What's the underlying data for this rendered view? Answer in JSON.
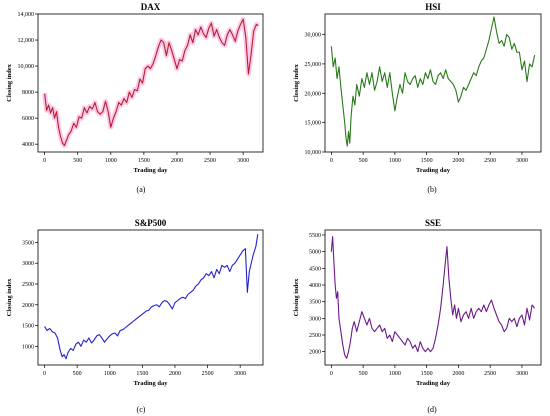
{
  "chart_data": [
    {
      "type": "line",
      "title": "DAX",
      "xlabel": "Trading day",
      "ylabel": "Closing index",
      "caption": "(a)",
      "xlim": [
        -100,
        3300
      ],
      "ylim": [
        3400,
        14000
      ],
      "x_ticks": [
        0,
        500,
        1000,
        1500,
        2000,
        2500,
        3000
      ],
      "x_tick_labels": [
        "0",
        "500",
        "1000",
        "1500",
        "2000",
        "2500",
        "3000"
      ],
      "y_ticks": [
        4000,
        6000,
        8000,
        10000,
        12000,
        14000
      ],
      "y_tick_labels": [
        "4000",
        "6000",
        "8000",
        "10,000",
        "12,000",
        "14,000"
      ],
      "series": [
        {
          "color": "#b22222",
          "highlight_color": "#ff99dd",
          "x": [
            0,
            30,
            60,
            90,
            120,
            150,
            180,
            210,
            240,
            270,
            300,
            330,
            360,
            400,
            440,
            480,
            520,
            560,
            600,
            640,
            680,
            720,
            760,
            800,
            840,
            880,
            920,
            960,
            1000,
            1040,
            1080,
            1120,
            1160,
            1200,
            1240,
            1280,
            1320,
            1360,
            1400,
            1440,
            1480,
            1520,
            1560,
            1600,
            1640,
            1680,
            1720,
            1760,
            1800,
            1840,
            1880,
            1920,
            1960,
            2000,
            2040,
            2080,
            2120,
            2160,
            2200,
            2240,
            2280,
            2320,
            2360,
            2400,
            2440,
            2480,
            2520,
            2560,
            2600,
            2640,
            2680,
            2720,
            2760,
            2800,
            2840,
            2880,
            2920,
            2960,
            3000,
            3040,
            3080,
            3120,
            3160,
            3200,
            3230
          ],
          "values": [
            7900,
            6600,
            7000,
            6400,
            6800,
            6000,
            6500,
            5300,
            4600,
            4100,
            3900,
            4300,
            4700,
            5000,
            5600,
            5300,
            6100,
            6000,
            6800,
            6400,
            6900,
            6700,
            7200,
            6500,
            6300,
            6500,
            7300,
            6500,
            5300,
            6000,
            6500,
            7200,
            7000,
            7500,
            7200,
            8000,
            7600,
            8200,
            8100,
            9000,
            8700,
            9800,
            10000,
            9800,
            10200,
            10800,
            11500,
            12000,
            11800,
            10800,
            11800,
            11200,
            10500,
            9800,
            10500,
            10400,
            11200,
            11600,
            12400,
            11800,
            12800,
            12400,
            13000,
            12500,
            12200,
            12900,
            13300,
            12300,
            12800,
            12200,
            11800,
            11600,
            12400,
            12800,
            12400,
            11900,
            12700,
            13200,
            13600,
            12200,
            9400,
            10900,
            12700,
            13200,
            13100
          ]
        }
      ]
    },
    {
      "type": "line",
      "title": "HSI",
      "xlabel": "Trading day",
      "ylabel": "Closing index",
      "caption": "(b)",
      "xlim": [
        -100,
        3300
      ],
      "ylim": [
        10000,
        33500
      ],
      "x_ticks": [
        0,
        500,
        1000,
        1500,
        2000,
        2500,
        3000
      ],
      "x_tick_labels": [
        "0",
        "500",
        "1000",
        "1500",
        "2000",
        "2500",
        "3000"
      ],
      "y_ticks": [
        10000,
        15000,
        20000,
        25000,
        30000
      ],
      "y_tick_labels": [
        "10,000",
        "15,000",
        "20,000",
        "25,000",
        "30,000"
      ],
      "series": [
        {
          "color": "#2a7a1a",
          "x": [
            0,
            30,
            60,
            90,
            120,
            150,
            180,
            210,
            230,
            250,
            270,
            290,
            310,
            340,
            370,
            400,
            440,
            480,
            520,
            560,
            600,
            640,
            680,
            720,
            760,
            800,
            840,
            880,
            920,
            960,
            1000,
            1040,
            1080,
            1120,
            1160,
            1200,
            1240,
            1280,
            1320,
            1360,
            1400,
            1440,
            1480,
            1520,
            1560,
            1600,
            1640,
            1680,
            1720,
            1760,
            1800,
            1840,
            1880,
            1920,
            1960,
            2000,
            2040,
            2080,
            2120,
            2160,
            2200,
            2240,
            2280,
            2320,
            2360,
            2400,
            2440,
            2480,
            2520,
            2560,
            2600,
            2640,
            2680,
            2720,
            2760,
            2800,
            2840,
            2880,
            2920,
            2960,
            3000,
            3040,
            3080,
            3120,
            3160,
            3200
          ],
          "values": [
            28000,
            24500,
            26000,
            22500,
            24500,
            21000,
            18000,
            15000,
            12500,
            11000,
            13500,
            11500,
            16000,
            19500,
            18000,
            21500,
            19500,
            22500,
            21000,
            23500,
            21500,
            23500,
            20500,
            22000,
            24500,
            22000,
            23500,
            21000,
            23500,
            20000,
            17000,
            19500,
            21500,
            20000,
            23500,
            22000,
            21500,
            22500,
            23000,
            21000,
            22500,
            21500,
            23500,
            22500,
            24000,
            22000,
            21500,
            23000,
            23500,
            22500,
            24000,
            22500,
            22000,
            21500,
            20500,
            18500,
            19500,
            21000,
            20500,
            21500,
            22500,
            23500,
            23000,
            24500,
            25500,
            26000,
            27500,
            29000,
            31000,
            33000,
            30500,
            28500,
            29000,
            28000,
            30000,
            29500,
            27500,
            28500,
            27000,
            27000,
            24000,
            25500,
            22000,
            25000,
            24500,
            26500
          ]
        }
      ]
    },
    {
      "type": "line",
      "title": "S&P500",
      "xlabel": "Trading day",
      "ylabel": "Closing index",
      "caption": "(c)",
      "xlim": [
        -100,
        3350
      ],
      "ylim": [
        550,
        3800
      ],
      "x_ticks": [
        0,
        500,
        1000,
        1500,
        2000,
        2500,
        3000
      ],
      "x_tick_labels": [
        "0",
        "500",
        "1000",
        "1500",
        "2000",
        "2500",
        "3000"
      ],
      "y_ticks": [
        1000,
        1500,
        2000,
        2500,
        3000,
        3500
      ],
      "y_tick_labels": [
        "1000",
        "1500",
        "2000",
        "2500",
        "3000",
        "3500"
      ],
      "series": [
        {
          "color": "#2222cc",
          "x": [
            0,
            40,
            80,
            120,
            160,
            200,
            240,
            270,
            300,
            330,
            360,
            400,
            440,
            480,
            520,
            560,
            600,
            640,
            680,
            720,
            760,
            800,
            840,
            880,
            920,
            960,
            1000,
            1040,
            1080,
            1120,
            1160,
            1200,
            1240,
            1280,
            1320,
            1360,
            1400,
            1440,
            1480,
            1520,
            1560,
            1600,
            1640,
            1680,
            1720,
            1760,
            1800,
            1840,
            1880,
            1920,
            1960,
            2000,
            2040,
            2080,
            2120,
            2160,
            2200,
            2240,
            2280,
            2320,
            2360,
            2400,
            2440,
            2480,
            2520,
            2560,
            2600,
            2640,
            2680,
            2720,
            2760,
            2800,
            2840,
            2880,
            2920,
            2960,
            3000,
            3040,
            3080,
            3110,
            3140,
            3170,
            3200,
            3240,
            3270
          ],
          "values": [
            1480,
            1380,
            1430,
            1350,
            1320,
            1200,
            900,
            750,
            800,
            700,
            850,
            950,
            900,
            1050,
            1100,
            1000,
            1150,
            1100,
            1200,
            1080,
            1150,
            1250,
            1280,
            1200,
            1100,
            1180,
            1250,
            1300,
            1320,
            1250,
            1380,
            1400,
            1450,
            1500,
            1550,
            1600,
            1650,
            1700,
            1750,
            1800,
            1850,
            1870,
            1950,
            1980,
            2000,
            1950,
            2050,
            2100,
            2080,
            2000,
            1900,
            2050,
            2100,
            2150,
            2180,
            2150,
            2250,
            2300,
            2350,
            2450,
            2500,
            2600,
            2650,
            2750,
            2700,
            2800,
            2650,
            2850,
            2750,
            2950,
            2900,
            2950,
            2800,
            2950,
            3000,
            3100,
            3200,
            3300,
            3350,
            2300,
            2800,
            3000,
            3200,
            3400,
            3700
          ]
        }
      ]
    },
    {
      "type": "line",
      "title": "SSE",
      "xlabel": "Trading day",
      "ylabel": "Closing index",
      "caption": "(d)",
      "xlim": [
        -100,
        3300
      ],
      "ylim": [
        1600,
        5650
      ],
      "x_ticks": [
        0,
        500,
        1000,
        1500,
        2000,
        2500,
        3000
      ],
      "x_tick_labels": [
        "0",
        "500",
        "1000",
        "1500",
        "2000",
        "2500",
        "3000"
      ],
      "y_ticks": [
        2000,
        2500,
        3000,
        3500,
        4000,
        4500,
        5000,
        5500
      ],
      "y_tick_labels": [
        "2000",
        "2500",
        "3000",
        "3500",
        "4000",
        "4500",
        "5000",
        "5500"
      ],
      "series": [
        {
          "color": "#6a1a8a",
          "x": [
            0,
            20,
            40,
            60,
            80,
            100,
            120,
            150,
            180,
            210,
            240,
            270,
            300,
            330,
            360,
            400,
            440,
            480,
            520,
            560,
            600,
            640,
            680,
            720,
            760,
            800,
            840,
            880,
            920,
            960,
            1000,
            1040,
            1080,
            1120,
            1160,
            1200,
            1240,
            1280,
            1320,
            1360,
            1400,
            1440,
            1480,
            1520,
            1560,
            1600,
            1640,
            1680,
            1720,
            1760,
            1790,
            1820,
            1850,
            1880,
            1910,
            1940,
            1970,
            2000,
            2040,
            2080,
            2120,
            2160,
            2200,
            2240,
            2280,
            2320,
            2360,
            2400,
            2440,
            2480,
            2520,
            2560,
            2600,
            2640,
            2680,
            2720,
            2760,
            2800,
            2840,
            2880,
            2920,
            2960,
            3000,
            3040,
            3080,
            3120,
            3160,
            3200
          ],
          "values": [
            5000,
            5450,
            4700,
            4000,
            3600,
            3800,
            3000,
            2600,
            2200,
            1900,
            1800,
            2000,
            2300,
            2700,
            2900,
            2600,
            2900,
            3200,
            3000,
            2800,
            3000,
            2700,
            2600,
            2700,
            2800,
            2600,
            2700,
            2400,
            2500,
            2300,
            2600,
            2500,
            2400,
            2300,
            2200,
            2400,
            2300,
            2100,
            2200,
            2000,
            2300,
            2100,
            2000,
            2100,
            2000,
            2100,
            2400,
            2800,
            3300,
            4000,
            4600,
            5150,
            4200,
            3600,
            3100,
            3400,
            3000,
            3300,
            2900,
            3100,
            3200,
            3000,
            3300,
            3000,
            3200,
            3300,
            3200,
            3400,
            3200,
            3400,
            3550,
            3300,
            3100,
            2900,
            2800,
            2600,
            2700,
            3000,
            2900,
            3000,
            2750,
            3000,
            3100,
            2800,
            3300,
            2950,
            3400,
            3300
          ]
        }
      ]
    }
  ]
}
